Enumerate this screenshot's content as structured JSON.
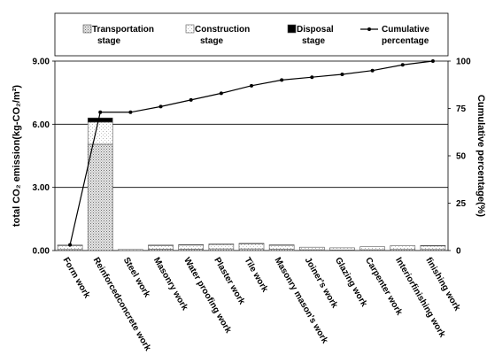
{
  "chart_data": {
    "type": "bar",
    "categories": [
      "Form work",
      "Reinforcedconcrete work",
      "Steel work",
      "Masonry work",
      "Water proofing work",
      "Plaster work",
      "Tile work",
      "Masonry mason's work",
      "Joiner's work",
      "Glazing work",
      "Carpenter work",
      "Interiorfinishing work",
      "finishing work"
    ],
    "series": [
      {
        "name": "Transportation stage",
        "kind": "stacked-bar",
        "pattern": "dotted",
        "values": [
          0.05,
          5.05,
          0.0,
          0.07,
          0.07,
          0.08,
          0.08,
          0.06,
          0.04,
          0.03,
          0.04,
          0.05,
          0.05
        ]
      },
      {
        "name": "Construction stage",
        "kind": "stacked-bar",
        "pattern": "light-dotted",
        "values": [
          0.2,
          1.05,
          0.05,
          0.18,
          0.2,
          0.22,
          0.25,
          0.2,
          0.12,
          0.1,
          0.14,
          0.18,
          0.18
        ]
      },
      {
        "name": "Disposal stage",
        "kind": "stacked-bar",
        "pattern": "black",
        "values": [
          0.01,
          0.2,
          0.0,
          0.01,
          0.01,
          0.01,
          0.01,
          0.01,
          0.0,
          0.0,
          0.0,
          0.0,
          0.01
        ]
      },
      {
        "name": "Cumulative percentage",
        "kind": "line",
        "axis": "right",
        "values": [
          3,
          73,
          73,
          76,
          79.5,
          83,
          87,
          90,
          91.5,
          93,
          95,
          98,
          100
        ]
      }
    ],
    "legend": {
      "placement": "top",
      "items": [
        {
          "line1": "Transportation",
          "line2": "stage",
          "swatch": "dotted"
        },
        {
          "line1": "Construction",
          "line2": "stage",
          "swatch": "light-dotted"
        },
        {
          "line1": "Disposal",
          "line2": "stage",
          "swatch": "black"
        },
        {
          "line1": "Cumulative",
          "line2": "percentage",
          "swatch": "line"
        }
      ]
    },
    "ylabel_left": "total CO₂ emission(kg-CO₂/m²)",
    "ylabel_right": "Cumulative percentage(%)",
    "ylim_left": [
      0,
      9
    ],
    "ylim_right": [
      0,
      100
    ],
    "yticks_left": [
      "0.00",
      "3.00",
      "6.00",
      "9.00"
    ],
    "ytick_values_left": [
      0,
      3,
      6,
      9
    ],
    "yticks_right": [
      "0",
      "25",
      "50",
      "75",
      "100"
    ],
    "ytick_values_right": [
      0,
      25,
      50,
      75,
      100
    ],
    "grid": "horizontal",
    "colors": {
      "line": "#000000",
      "grid": "#000000",
      "disposal": "#000000",
      "bar_outline": "#555555"
    }
  }
}
